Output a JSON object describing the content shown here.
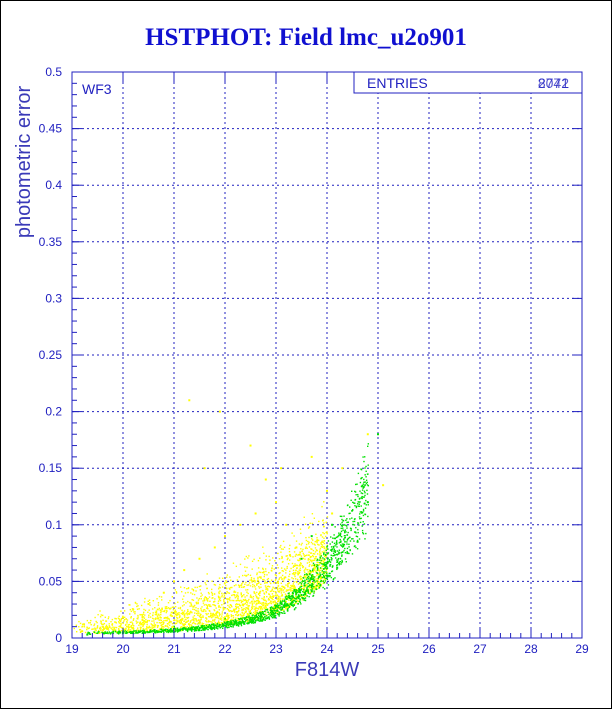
{
  "chart_data": {
    "type": "scatter",
    "title": "HSTPHOT: Field lmc_u2o901",
    "xlabel": "F814W",
    "ylabel": "photometric error",
    "xlim": [
      19,
      29
    ],
    "ylim": [
      0,
      0.5
    ],
    "x_ticks": [
      "19",
      "20",
      "21",
      "22",
      "23",
      "24",
      "25",
      "26",
      "27",
      "28",
      "29"
    ],
    "y_ticks": [
      "0",
      "0.05",
      "0.1",
      "0.15",
      "0.2",
      "0.25",
      "0.3",
      "0.35",
      "0.4",
      "0.45",
      "0.5"
    ],
    "grid": true,
    "panel_label": "WF3",
    "stats_box": {
      "label": "ENTRIES",
      "value_a": "8071",
      "value_b": "2742"
    },
    "series": [
      {
        "color": "#ffff00",
        "points": [
          [
            19.2,
            0.006
          ],
          [
            19.6,
            0.01
          ],
          [
            20.0,
            0.018
          ],
          [
            20.2,
            0.025
          ],
          [
            20.5,
            0.03
          ],
          [
            20.8,
            0.04
          ],
          [
            21.0,
            0.05
          ],
          [
            21.2,
            0.06
          ],
          [
            21.5,
            0.07
          ],
          [
            21.8,
            0.08
          ],
          [
            22.0,
            0.09
          ],
          [
            22.3,
            0.1
          ],
          [
            22.6,
            0.11
          ],
          [
            23.0,
            0.12
          ],
          [
            23.2,
            0.1
          ],
          [
            23.4,
            0.08
          ],
          [
            21.3,
            0.21
          ],
          [
            21.9,
            0.2
          ],
          [
            22.5,
            0.17
          ],
          [
            23.1,
            0.15
          ],
          [
            23.7,
            0.16
          ],
          [
            24.0,
            0.13
          ],
          [
            24.3,
            0.15
          ],
          [
            24.8,
            0.18
          ],
          [
            25.1,
            0.135
          ],
          [
            24.1,
            0.11
          ],
          [
            22.8,
            0.14
          ],
          [
            21.6,
            0.15
          ]
        ]
      },
      {
        "color": "#00e000",
        "points": [
          [
            19.3,
            0.003
          ],
          [
            20.0,
            0.006
          ],
          [
            21.0,
            0.01
          ],
          [
            21.5,
            0.013
          ],
          [
            22.0,
            0.017
          ],
          [
            22.5,
            0.022
          ],
          [
            23.0,
            0.028
          ],
          [
            23.5,
            0.038
          ],
          [
            23.8,
            0.046
          ],
          [
            24.0,
            0.055
          ],
          [
            24.2,
            0.062
          ],
          [
            24.4,
            0.075
          ],
          [
            24.6,
            0.085
          ],
          [
            23.5,
            0.07
          ],
          [
            23.7,
            0.09
          ],
          [
            24.1,
            0.1
          ],
          [
            24.8,
            0.12
          ],
          [
            25.0,
            0.18
          ]
        ]
      }
    ],
    "point_counts": [
      8071,
      2742
    ]
  }
}
